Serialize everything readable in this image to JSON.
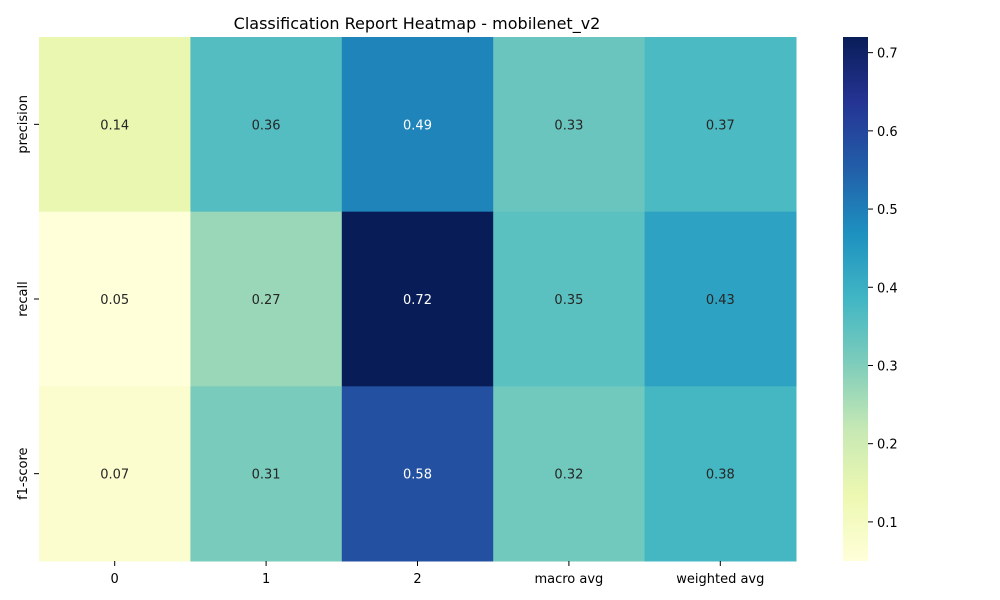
{
  "chart_data": {
    "type": "heatmap",
    "title": "Classification Report Heatmap - mobilenet_v2",
    "x_categories": [
      "0",
      "1",
      "2",
      "macro avg",
      "weighted avg"
    ],
    "y_categories": [
      "precision",
      "recall",
      "f1-score"
    ],
    "values": [
      [
        0.14,
        0.36,
        0.49,
        0.33,
        0.37
      ],
      [
        0.05,
        0.27,
        0.72,
        0.35,
        0.43
      ],
      [
        0.07,
        0.31,
        0.58,
        0.32,
        0.38
      ]
    ],
    "value_labels": [
      [
        "0.14",
        "0.36",
        "0.49",
        "0.33",
        "0.37"
      ],
      [
        "0.05",
        "0.27",
        "0.72",
        "0.35",
        "0.43"
      ],
      [
        "0.07",
        "0.31",
        "0.58",
        "0.32",
        "0.38"
      ]
    ],
    "colormap": "YlGnBu",
    "vmin": 0.05,
    "vmax": 0.72,
    "colorbar_ticks": [
      "0.1",
      "0.2",
      "0.3",
      "0.4",
      "0.5",
      "0.6",
      "0.7"
    ],
    "colorbar_tick_values": [
      0.1,
      0.2,
      0.3,
      0.4,
      0.5,
      0.6,
      0.7
    ],
    "xlabel": "",
    "ylabel": "",
    "grid": false
  }
}
